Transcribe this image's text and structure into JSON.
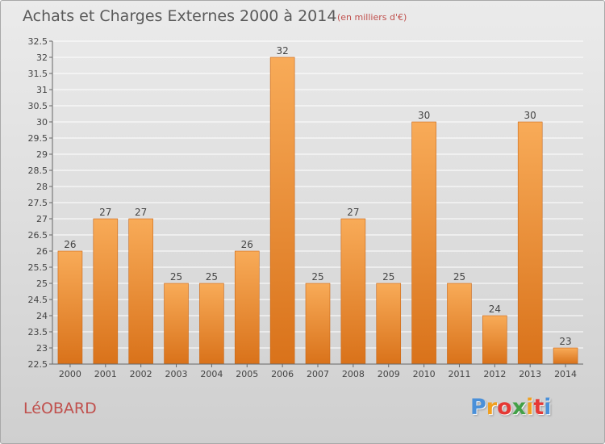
{
  "header": {
    "title": "Achats et Charges Externes 2000 à 2014",
    "subtitle": "(en milliers d'€)"
  },
  "footer": {
    "commune": "LéOBARD",
    "brand": {
      "letters": [
        "P",
        "r",
        "o",
        "x",
        "i",
        "t",
        "i"
      ],
      "colors": [
        "#4a90d9",
        "#f0a020",
        "#e53935",
        "#43a047",
        "#f0a020",
        "#e53935",
        "#4a90d9"
      ]
    }
  },
  "colors": {
    "bar_top": "#f8ab58",
    "bar_bottom": "#d9721a",
    "bar_stroke": "#c9681a",
    "grid": "#ffffff",
    "axis": "#666666",
    "label": "#444444"
  },
  "chart_data": {
    "type": "bar",
    "categories": [
      "2000",
      "2001",
      "2002",
      "2003",
      "2004",
      "2005",
      "2006",
      "2007",
      "2008",
      "2009",
      "2010",
      "2011",
      "2012",
      "2013",
      "2014"
    ],
    "values": [
      26,
      27,
      27,
      25,
      25,
      26,
      32,
      25,
      27,
      25,
      30,
      25,
      24,
      30,
      23
    ],
    "data_labels": [
      "26",
      "27",
      "27",
      "25",
      "25",
      "26",
      "32",
      "25",
      "27",
      "25",
      "30",
      "25",
      "24",
      "30",
      "23"
    ],
    "ylim": [
      22.5,
      32.5
    ],
    "yticks": [
      "22.5",
      "23",
      "23.5",
      "24",
      "24.5",
      "25",
      "25.5",
      "26",
      "26.5",
      "27",
      "27.5",
      "28",
      "28.5",
      "29",
      "29.5",
      "30",
      "30.5",
      "31",
      "31.5",
      "32",
      "32.5"
    ],
    "grid": true,
    "legend": "none"
  }
}
